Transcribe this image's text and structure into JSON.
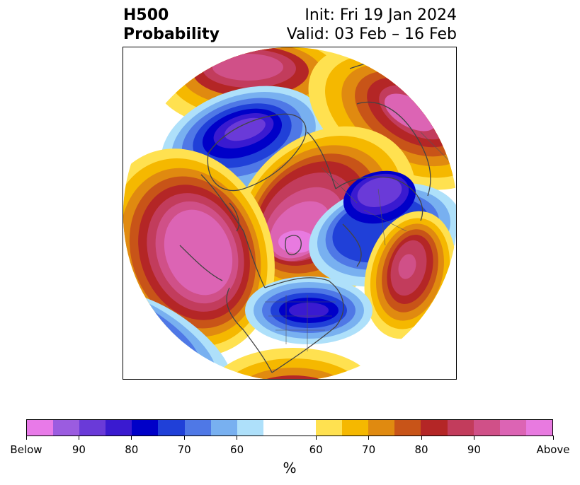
{
  "title": {
    "left_line1": "H500",
    "left_line2": "Probability",
    "right_line1": "Init: Fri 19 Jan 2024",
    "right_line2": "Valid: 03 Feb – 16 Feb"
  },
  "colorbar": {
    "colors": [
      "#e87ae8",
      "#9b5ce0",
      "#6a3ad8",
      "#3a1ad0",
      "#0000c8",
      "#2040d8",
      "#4f78e6",
      "#78b0f0",
      "#aee0fa",
      "#ffffff",
      "#ffe150",
      "#f5b800",
      "#e08a10",
      "#c85418",
      "#b42626",
      "#c23c5c",
      "#d05088",
      "#dc64b4",
      "#e87ae0"
    ],
    "tick_labels": [
      "Below",
      "90",
      "80",
      "70",
      "60",
      "60",
      "70",
      "80",
      "90",
      "Above"
    ],
    "unit_label": "%"
  },
  "map": {
    "projection": "north-polar-stereographic",
    "field": "500 hPa height anomaly probability",
    "background_color": "#ffffff",
    "coastline_color": "#444444"
  }
}
